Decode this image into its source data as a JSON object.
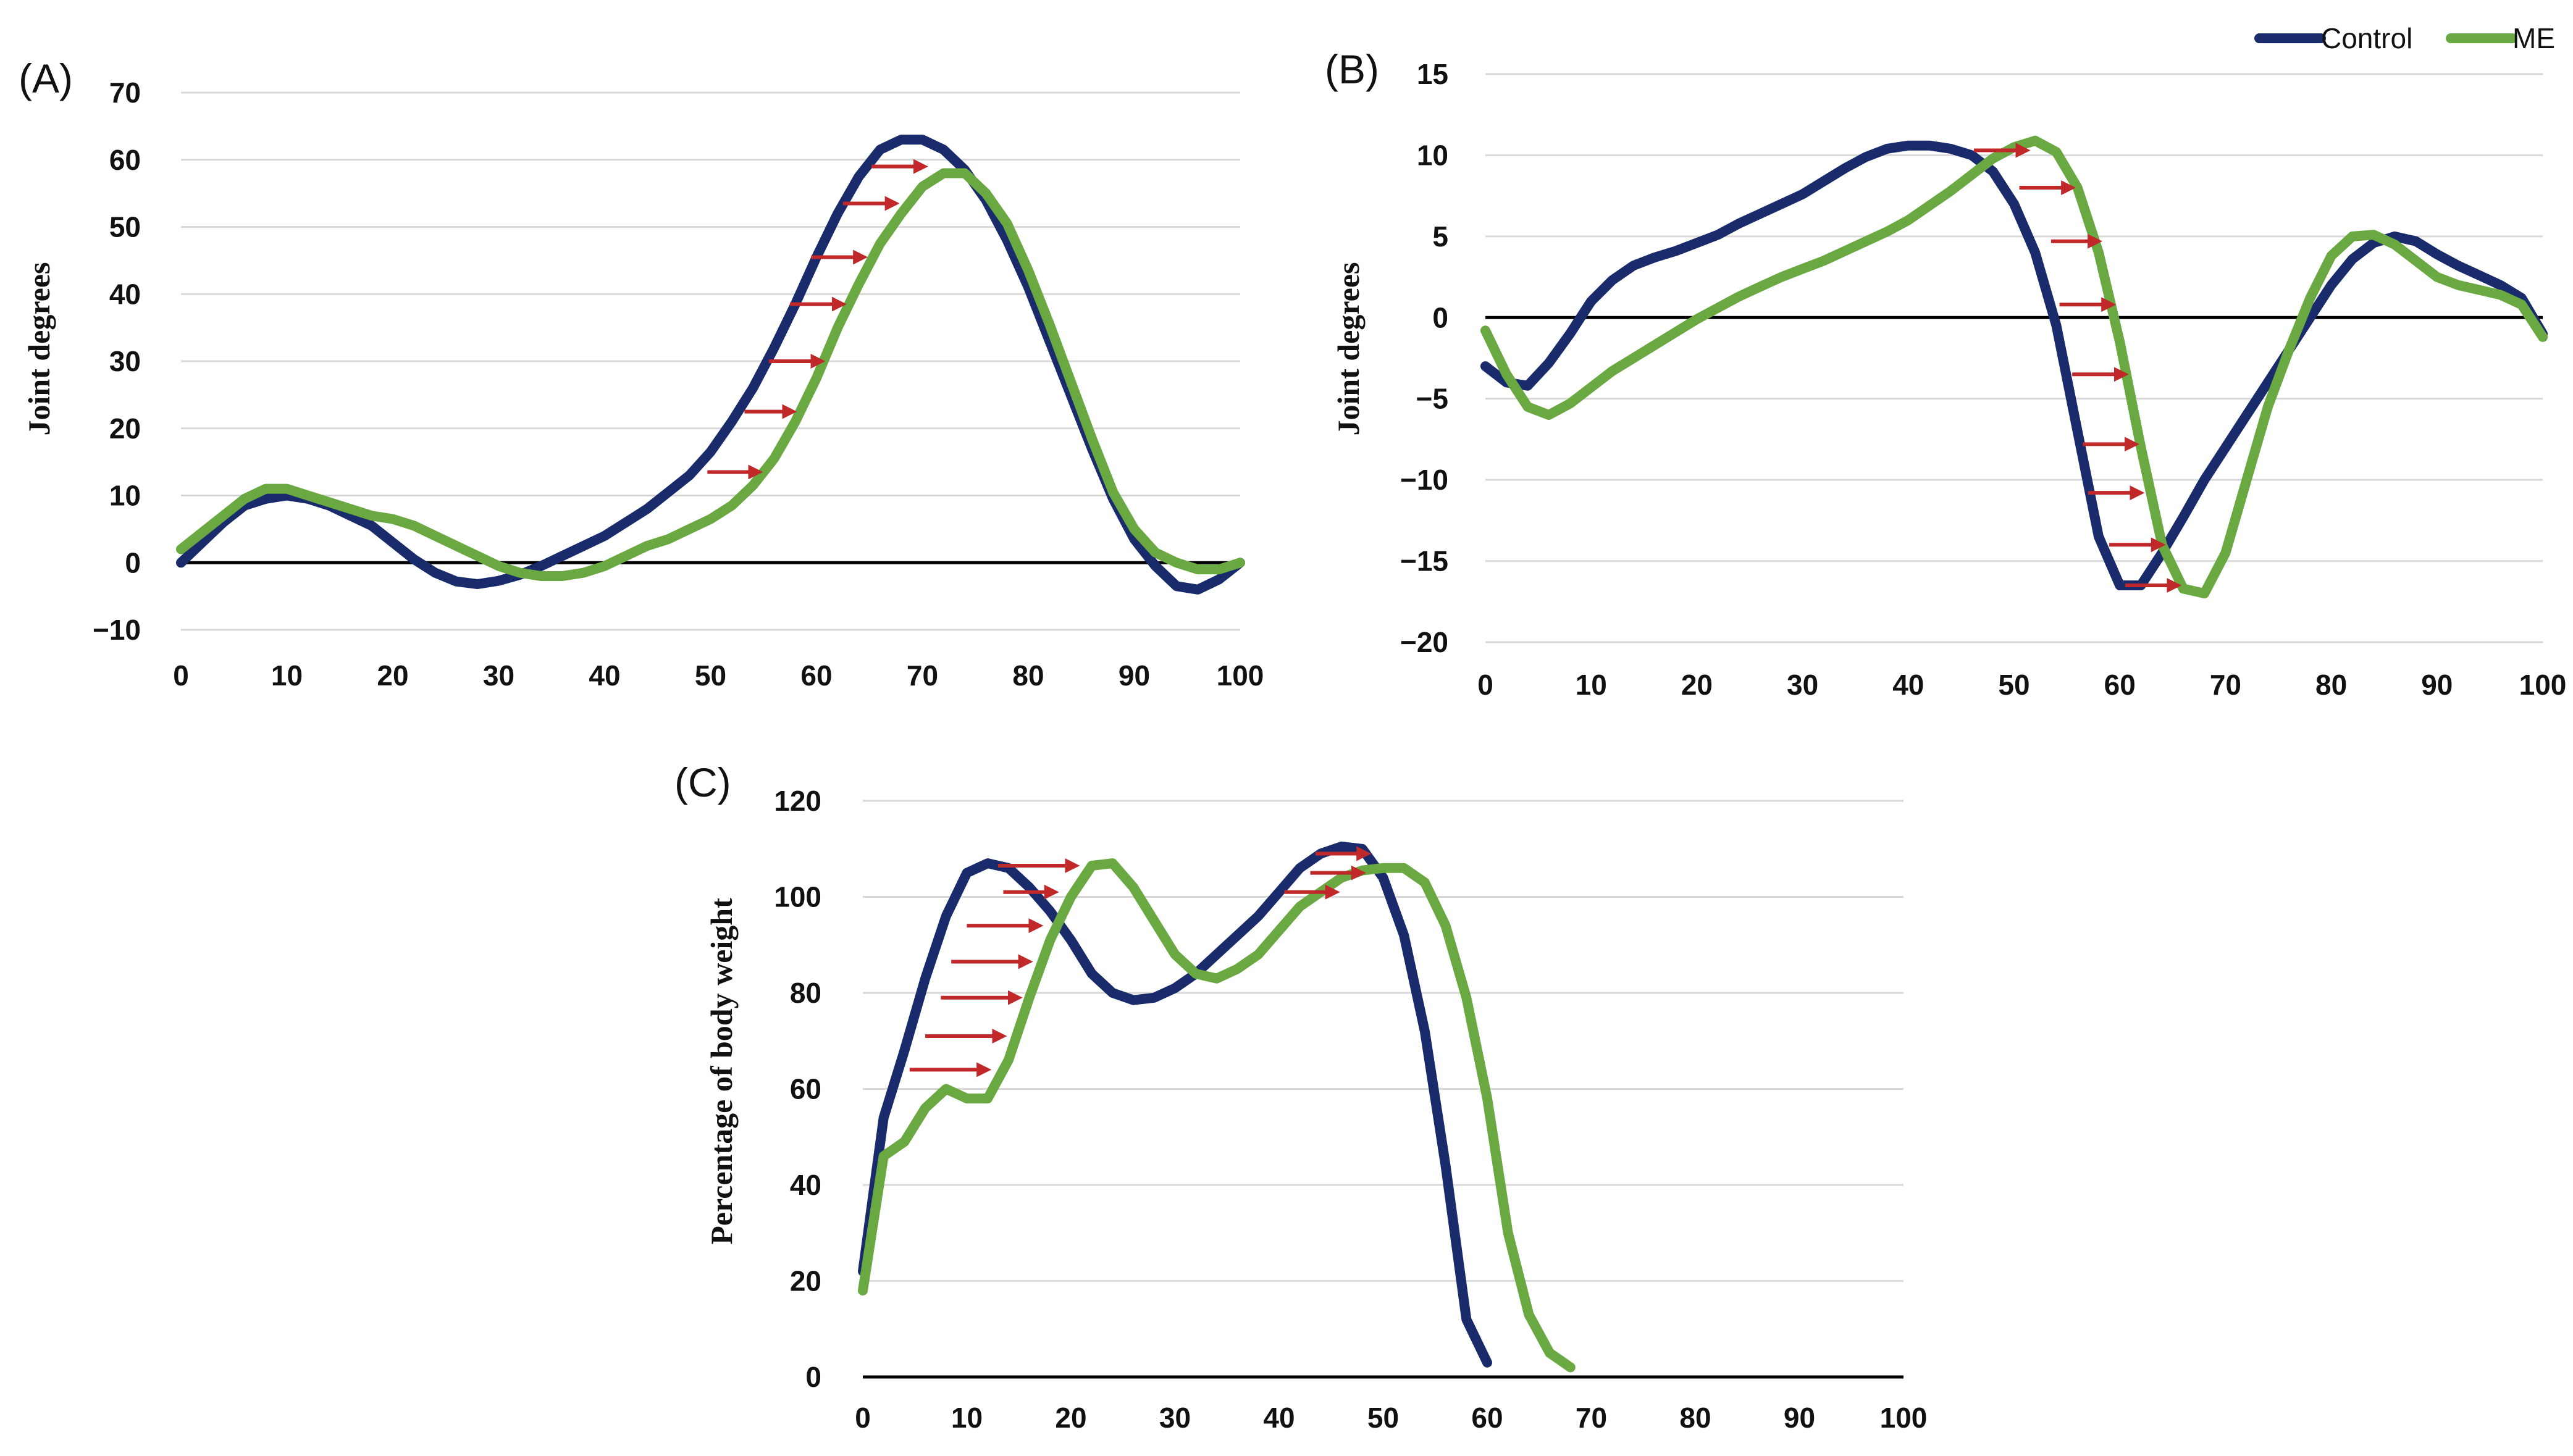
{
  "colors": {
    "control": "#1a2b6b",
    "me": "#6aa842",
    "arrow": "#c0282a",
    "grid": "#d9d9d9",
    "zero": "#000000"
  },
  "legend": [
    {
      "key": "control",
      "label": "Control"
    },
    {
      "key": "me",
      "label": "ME"
    }
  ],
  "chart_data": [
    {
      "id": "A",
      "type": "line",
      "panel_label": "(A)",
      "ylabel": "Joint degrees",
      "xlabel": "",
      "xlim": [
        0,
        100
      ],
      "ylim": [
        -10,
        70
      ],
      "xticks": [
        0,
        10,
        20,
        30,
        40,
        50,
        60,
        70,
        80,
        90,
        100
      ],
      "yticks": [
        -10,
        0,
        10,
        20,
        30,
        40,
        50,
        60,
        70
      ],
      "ytick_labels": [
        "−10",
        "0",
        "10",
        "20",
        "30",
        "40",
        "50",
        "60",
        "70"
      ],
      "series": [
        {
          "name": "Control",
          "key": "control",
          "x": [
            0,
            2,
            4,
            6,
            8,
            10,
            12,
            14,
            16,
            18,
            20,
            22,
            24,
            26,
            28,
            30,
            32,
            34,
            36,
            38,
            40,
            42,
            44,
            46,
            48,
            50,
            52,
            54,
            56,
            58,
            60,
            62,
            64,
            66,
            68,
            70,
            72,
            74,
            76,
            78,
            80,
            82,
            84,
            86,
            88,
            90,
            92,
            94,
            96,
            98,
            100
          ],
          "y": [
            0,
            3,
            6,
            8.5,
            9.5,
            10,
            9.5,
            8.5,
            7,
            5.5,
            3,
            0.5,
            -1.5,
            -2.8,
            -3.2,
            -2.7,
            -1.8,
            -0.5,
            1,
            2.5,
            4,
            6,
            8,
            10.5,
            13,
            16.5,
            21,
            26,
            32,
            38.5,
            45.5,
            52,
            57.5,
            61.5,
            63,
            63,
            61.5,
            58.5,
            54,
            48,
            41,
            33,
            25,
            17,
            9.5,
            3.5,
            -0.5,
            -3.5,
            -4,
            -2.5,
            0
          ]
        },
        {
          "name": "ME",
          "key": "me",
          "x": [
            0,
            2,
            4,
            6,
            8,
            10,
            12,
            14,
            16,
            18,
            20,
            22,
            24,
            26,
            28,
            30,
            32,
            34,
            36,
            38,
            40,
            42,
            44,
            46,
            48,
            50,
            52,
            54,
            56,
            58,
            60,
            62,
            64,
            66,
            68,
            70,
            72,
            74,
            76,
            78,
            80,
            82,
            84,
            86,
            88,
            90,
            92,
            94,
            96,
            98,
            100
          ],
          "y": [
            2,
            4.5,
            7,
            9.5,
            11,
            11,
            10,
            9,
            8,
            7,
            6.5,
            5.5,
            4,
            2.5,
            1,
            -0.5,
            -1.5,
            -2,
            -2,
            -1.5,
            -0.5,
            1,
            2.5,
            3.5,
            5,
            6.5,
            8.5,
            11.5,
            15.5,
            21,
            27.5,
            35,
            41.5,
            47.5,
            52,
            56,
            58,
            58,
            55,
            50.5,
            43.5,
            35.5,
            27,
            18.5,
            10.5,
            5,
            1.5,
            0,
            -1,
            -1,
            0
          ]
        }
      ],
      "arrows": [
        {
          "y": 13.5,
          "x1": 49.7,
          "x2": 54.6
        },
        {
          "y": 22.5,
          "x1": 53.2,
          "x2": 57.8
        },
        {
          "y": 30,
          "x1": 55.5,
          "x2": 60.5
        },
        {
          "y": 38.5,
          "x1": 57.5,
          "x2": 62.5
        },
        {
          "y": 45.5,
          "x1": 59.5,
          "x2": 64.5
        },
        {
          "y": 53.5,
          "x1": 62.5,
          "x2": 67.5
        },
        {
          "y": 59,
          "x1": 65.2,
          "x2": 70.2
        }
      ]
    },
    {
      "id": "B",
      "type": "line",
      "panel_label": "(B)",
      "ylabel": "Joint degrees",
      "xlabel": "",
      "xlim": [
        0,
        100
      ],
      "ylim": [
        -20,
        15
      ],
      "xticks": [
        0,
        10,
        20,
        30,
        40,
        50,
        60,
        70,
        80,
        90,
        100
      ],
      "yticks": [
        -20,
        -15,
        -10,
        -5,
        0,
        5,
        10,
        15
      ],
      "ytick_labels": [
        "−20",
        "−15",
        "−10",
        "−5",
        "0",
        "5",
        "10",
        "15"
      ],
      "series": [
        {
          "name": "Control",
          "key": "control",
          "x": [
            0,
            2,
            4,
            6,
            8,
            10,
            12,
            14,
            16,
            18,
            20,
            22,
            24,
            26,
            28,
            30,
            32,
            34,
            36,
            38,
            40,
            42,
            44,
            46,
            48,
            50,
            52,
            54,
            56,
            58,
            60,
            62,
            64,
            66,
            68,
            70,
            72,
            74,
            76,
            78,
            80,
            82,
            84,
            86,
            88,
            90,
            92,
            94,
            96,
            98,
            100
          ],
          "y": [
            -3,
            -4,
            -4.2,
            -2.8,
            -1,
            1,
            2.3,
            3.2,
            3.7,
            4.1,
            4.6,
            5.1,
            5.8,
            6.4,
            7,
            7.6,
            8.4,
            9.2,
            9.9,
            10.4,
            10.6,
            10.6,
            10.4,
            10,
            9,
            7,
            4,
            -0.5,
            -7,
            -13.5,
            -16.5,
            -16.5,
            -14.5,
            -12.3,
            -10,
            -8,
            -6,
            -4,
            -2,
            0,
            2,
            3.6,
            4.6,
            5,
            4.7,
            3.9,
            3.2,
            2.6,
            2,
            1.2,
            -1
          ]
        },
        {
          "name": "ME",
          "key": "me",
          "x": [
            0,
            2,
            4,
            6,
            8,
            10,
            12,
            14,
            16,
            18,
            20,
            22,
            24,
            26,
            28,
            30,
            32,
            34,
            36,
            38,
            40,
            42,
            44,
            46,
            48,
            50,
            52,
            54,
            56,
            58,
            60,
            62,
            64,
            66,
            68,
            70,
            72,
            74,
            76,
            78,
            80,
            82,
            84,
            86,
            88,
            90,
            92,
            94,
            96,
            98,
            100
          ],
          "y": [
            -0.8,
            -3.5,
            -5.5,
            -6,
            -5.3,
            -4.3,
            -3.3,
            -2.5,
            -1.7,
            -0.9,
            -0.1,
            0.6,
            1.3,
            1.9,
            2.5,
            3,
            3.5,
            4.1,
            4.7,
            5.3,
            6,
            6.9,
            7.8,
            8.8,
            9.8,
            10.5,
            10.9,
            10.2,
            8,
            4,
            -1.5,
            -8,
            -14,
            -16.7,
            -17,
            -14.5,
            -10,
            -5.5,
            -2,
            1.2,
            3.8,
            5,
            5.1,
            4.5,
            3.5,
            2.5,
            2,
            1.7,
            1.4,
            0.8,
            -1.2
          ]
        }
      ],
      "arrows": [
        {
          "y": 10.3,
          "x1": 46.2,
          "x2": 51.2
        },
        {
          "y": 8,
          "x1": 50.5,
          "x2": 55.5
        },
        {
          "y": 4.7,
          "x1": 53.5,
          "x2": 58
        },
        {
          "y": 0.8,
          "x1": 54.3,
          "x2": 59.3
        },
        {
          "y": -3.5,
          "x1": 55.5,
          "x2": 60.5
        },
        {
          "y": -7.8,
          "x1": 56.5,
          "x2": 61.5
        },
        {
          "y": -10.8,
          "x1": 57,
          "x2": 62
        },
        {
          "y": -14,
          "x1": 59,
          "x2": 64
        },
        {
          "y": -16.5,
          "x1": 60.5,
          "x2": 65.5
        }
      ]
    },
    {
      "id": "C",
      "type": "line",
      "panel_label": "(C)",
      "ylabel": "Percentage of body weight",
      "xlabel": "",
      "xlim": [
        0,
        100
      ],
      "ylim": [
        0,
        120
      ],
      "xticks": [
        0,
        10,
        20,
        30,
        40,
        50,
        60,
        70,
        80,
        90,
        100
      ],
      "yticks": [
        0,
        20,
        40,
        60,
        80,
        100,
        120
      ],
      "ytick_labels": [
        "0",
        "20",
        "40",
        "60",
        "80",
        "100",
        "120"
      ],
      "series": [
        {
          "name": "Control",
          "key": "control",
          "x": [
            0,
            2,
            4,
            6,
            8,
            10,
            12,
            14,
            16,
            18,
            20,
            22,
            24,
            26,
            28,
            30,
            32,
            34,
            36,
            38,
            40,
            42,
            44,
            46,
            48,
            50,
            52,
            54,
            56,
            58,
            60
          ],
          "y": [
            22,
            54,
            68,
            83,
            96,
            105,
            107,
            106,
            102,
            97,
            91,
            84,
            80,
            78.5,
            79,
            81,
            84,
            88,
            92,
            96,
            101,
            106,
            109,
            110.5,
            110,
            104,
            92,
            72,
            44,
            12,
            3
          ]
        },
        {
          "name": "ME",
          "key": "me",
          "x": [
            0,
            2,
            4,
            6,
            8,
            10,
            12,
            14,
            16,
            18,
            20,
            22,
            24,
            26,
            28,
            30,
            32,
            34,
            36,
            38,
            40,
            42,
            44,
            46,
            48,
            50,
            52,
            54,
            56,
            58,
            60,
            62,
            64,
            66,
            68
          ],
          "y": [
            18,
            46,
            49,
            56,
            60,
            58,
            58,
            66,
            79,
            91,
            100,
            106.5,
            107,
            102,
            95,
            88,
            84,
            83,
            85,
            88,
            93,
            98,
            101,
            104,
            105.5,
            106,
            106,
            103,
            94,
            79,
            58,
            30,
            13,
            5,
            2
          ]
        }
      ],
      "arrows": [
        {
          "y": 106.5,
          "x1": 13,
          "x2": 20.5
        },
        {
          "y": 101,
          "x1": 13.5,
          "x2": 18.5
        },
        {
          "y": 94,
          "x1": 10,
          "x2": 17
        },
        {
          "y": 86.5,
          "x1": 8.5,
          "x2": 16
        },
        {
          "y": 79,
          "x1": 7.5,
          "x2": 15
        },
        {
          "y": 71,
          "x1": 6,
          "x2": 13.5
        },
        {
          "y": 64,
          "x1": 4.5,
          "x2": 12
        },
        {
          "y": 109,
          "x1": 43.5,
          "x2": 48.5
        },
        {
          "y": 105,
          "x1": 43,
          "x2": 48
        },
        {
          "y": 101,
          "x1": 40.5,
          "x2": 45.5
        }
      ]
    }
  ]
}
